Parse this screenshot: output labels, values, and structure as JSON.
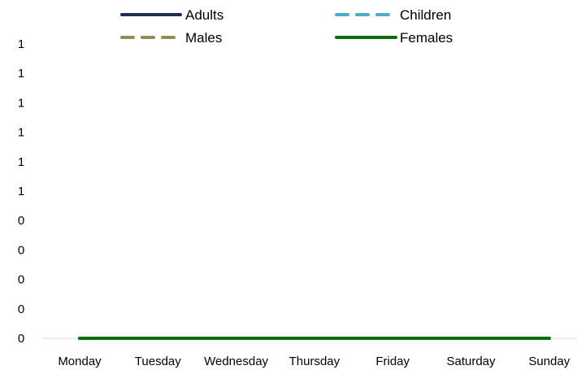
{
  "chart_data": {
    "type": "line",
    "categories": [
      "Monday",
      "Tuesday",
      "Wednesday",
      "Thursday",
      "Friday",
      "Saturday",
      "Sunday"
    ],
    "y_tick_labels": [
      "0",
      "0",
      "0",
      "0",
      "0",
      "1",
      "1",
      "1",
      "1",
      "1",
      "1"
    ],
    "ylim": [
      0,
      1
    ],
    "grid": false,
    "legend_position": "top",
    "series": [
      {
        "name": "Adults",
        "values": [
          0,
          0,
          0,
          0,
          0,
          0,
          0
        ],
        "color": "#1f2f4f",
        "dash": "solid"
      },
      {
        "name": "Children",
        "values": [
          0,
          0,
          0,
          0,
          0,
          0,
          0
        ],
        "color": "#4aacc6",
        "dash": "dashed"
      },
      {
        "name": "Males",
        "values": [
          0,
          0,
          0,
          0,
          0,
          0,
          0
        ],
        "color": "#948a54",
        "dash": "dashed"
      },
      {
        "name": "Females",
        "values": [
          0,
          0,
          0,
          0,
          0,
          0,
          0
        ],
        "color": "#0a6e0a",
        "dash": "solid"
      }
    ]
  }
}
